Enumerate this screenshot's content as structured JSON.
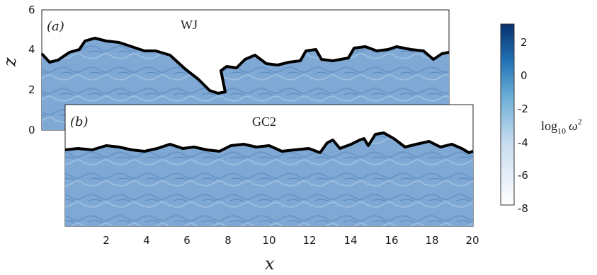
{
  "panels": [
    {
      "tag": "(a)",
      "case": "WJ"
    },
    {
      "tag": "(b)",
      "case": "GC2"
    }
  ],
  "axes": {
    "xlabel": "x",
    "zlabel": "z",
    "x_ticks": [
      "2",
      "4",
      "6",
      "8",
      "10",
      "12",
      "14",
      "16",
      "18",
      "20"
    ],
    "z_ticks": [
      "0",
      "2",
      "4",
      "6"
    ]
  },
  "colorbar": {
    "label_main": "log",
    "label_sub": "10",
    "label_var": "ω",
    "label_sup": "2",
    "ticks": [
      "2",
      "0",
      "-2",
      "-4",
      "-6",
      "-8"
    ],
    "range": [
      -8,
      3
    ]
  },
  "colors": {
    "turbulence_fill": "#7fa8d4",
    "interface": "#000000",
    "colorbar_top": "#08306b",
    "colorbar_bottom": "#ffffff"
  }
}
